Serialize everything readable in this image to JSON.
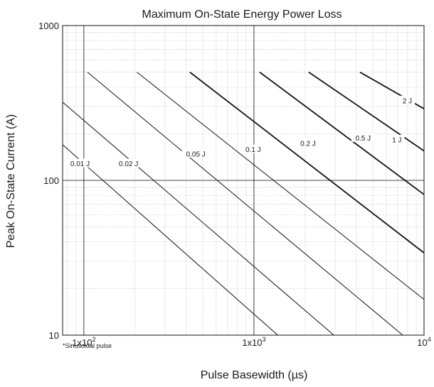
{
  "chart_data": {
    "type": "line",
    "title": "Maximum On-State Energy Power Loss",
    "xlabel": "Pulse Basewidth (µs)",
    "ylabel": "Peak On-State Current (A)",
    "x_scale": "log",
    "y_scale": "log",
    "xlim": [
      75,
      10000
    ],
    "ylim": [
      10,
      1000
    ],
    "x_ticks": [
      {
        "value": 100,
        "label": "1x10",
        "exp": "2"
      },
      {
        "value": 1000,
        "label": "1x10",
        "exp": "3"
      },
      {
        "value": 10000,
        "label": "10",
        "exp": "4"
      }
    ],
    "y_ticks": [
      {
        "value": 10,
        "label": "10"
      },
      {
        "value": 100,
        "label": "100"
      },
      {
        "value": 1000,
        "label": "1000"
      }
    ],
    "grid": true,
    "footnote": "*Sinusoidal pulse",
    "series": [
      {
        "name": "0.01 J",
        "weight": 1.0,
        "x": [
          75,
          1380
        ],
        "y": [
          170,
          10
        ]
      },
      {
        "name": "0.02 J",
        "weight": 1.0,
        "x": [
          75,
          2950
        ],
        "y": [
          320,
          10
        ]
      },
      {
        "name": "0.05 J",
        "weight": 1.0,
        "x": [
          105,
          7500
        ],
        "y": [
          500,
          10
        ]
      },
      {
        "name": "0.1 J",
        "weight": 1.0,
        "x": [
          205,
          10000
        ],
        "y": [
          500,
          17
        ]
      },
      {
        "name": "0.2 J",
        "weight": 1.8,
        "x": [
          420,
          10000
        ],
        "y": [
          500,
          34
        ]
      },
      {
        "name": "0.5 J",
        "weight": 1.8,
        "x": [
          1080,
          10000
        ],
        "y": [
          500,
          81
        ]
      },
      {
        "name": "1 J",
        "weight": 1.8,
        "x": [
          2100,
          10000
        ],
        "y": [
          500,
          155
        ]
      },
      {
        "name": "2 J",
        "weight": 1.8,
        "x": [
          4200,
          10000
        ],
        "y": [
          500,
          290
        ]
      }
    ],
    "annotations": [
      {
        "text": "0.01 J",
        "x": 95,
        "y": 128
      },
      {
        "text": "0.02 J",
        "x": 183,
        "y": 128
      },
      {
        "text": "0.05 J",
        "x": 455,
        "y": 148
      },
      {
        "text": "0.1 J",
        "x": 990,
        "y": 158
      },
      {
        "text": "0.2 J",
        "x": 2080,
        "y": 173
      },
      {
        "text": "0.5 J",
        "x": 4380,
        "y": 187
      },
      {
        "text": "1 J",
        "x": 6920,
        "y": 183
      },
      {
        "text": "2 J",
        "x": 7970,
        "y": 327
      }
    ]
  }
}
